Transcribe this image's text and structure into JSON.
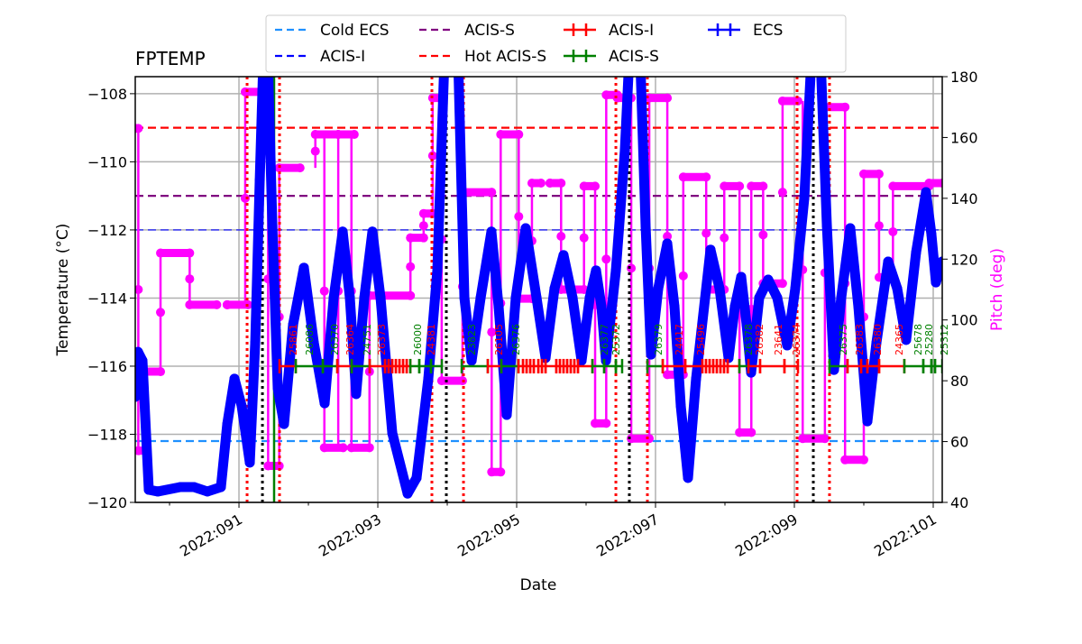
{
  "chart_data": {
    "type": "line",
    "title": "FPTEMP",
    "xlabel": "Date",
    "ylabel": "Temperature ($^\\circ$C)",
    "ylabel_display": "Temperature (°C)",
    "y2label": "Pitch (deg)",
    "xlim": [
      89.506,
      101.13
    ],
    "ylim": [
      -120,
      -107.5
    ],
    "y2lim": [
      40,
      180
    ],
    "grid": true,
    "legend_placement": "top-center",
    "x_ticks": [
      {
        "day": 91,
        "label": "2022:091"
      },
      {
        "day": 93,
        "label": "2022:093"
      },
      {
        "day": 95,
        "label": "2022:095"
      },
      {
        "day": 97,
        "label": "2022:097"
      },
      {
        "day": 99,
        "label": "2022:099"
      },
      {
        "day": 101,
        "label": "2022:101"
      }
    ],
    "y_ticks": [
      -120,
      -118,
      -116,
      -114,
      -112,
      -110,
      -108
    ],
    "y2_ticks": [
      40,
      60,
      80,
      100,
      120,
      140,
      160,
      180
    ],
    "colors": {
      "temperature": "#0000ff",
      "pitch": "#ff00ff",
      "acis_i": "#ff0000",
      "acis_s": "#008000",
      "ecs": "#0000ff",
      "grid": "#b0b0b0"
    },
    "limit_lines": [
      {
        "name": "Cold ECS",
        "value": -118.2,
        "color": "#1e90ff"
      },
      {
        "name": "ACIS-I",
        "value": -112.0,
        "color": "#0000ff"
      },
      {
        "name": "ACIS-S",
        "value": -111.0,
        "color": "#800080"
      },
      {
        "name": "Hot ACIS-S",
        "value": -109.0,
        "color": "#ff0000"
      }
    ],
    "legend": [
      {
        "label": "Cold ECS",
        "style": "dashed",
        "color": "#1e90ff"
      },
      {
        "label": "ACIS-I",
        "style": "dashed",
        "color": "#0000ff"
      },
      {
        "label": "ACIS-S",
        "style": "dashed",
        "color": "#800080"
      },
      {
        "label": "Hot ACIS-S",
        "style": "dashed",
        "color": "#ff0000"
      },
      {
        "label": "ACIS-I",
        "style": "ticked",
        "color": "#ff0000"
      },
      {
        "label": "ACIS-S",
        "style": "ticked",
        "color": "#008000"
      },
      {
        "label": "ECS",
        "style": "ticked",
        "color": "#0000ff"
      }
    ],
    "temperature": [
      [
        89.506,
        -116.9
      ],
      [
        89.545,
        -115.58
      ],
      [
        89.61,
        -115.84
      ],
      [
        89.701,
        -119.63
      ],
      [
        89.831,
        -119.68
      ],
      [
        90.156,
        -119.55
      ],
      [
        90.351,
        -119.55
      ],
      [
        90.545,
        -119.68
      ],
      [
        90.74,
        -119.55
      ],
      [
        90.831,
        -117.7
      ],
      [
        90.935,
        -116.37
      ],
      [
        91.039,
        -117.17
      ],
      [
        91.156,
        -118.83
      ],
      [
        91.234,
        -115.31
      ],
      [
        91.299,
        -110.54
      ],
      [
        91.351,
        -107.0
      ],
      [
        91.416,
        -107.0
      ],
      [
        91.481,
        -111.87
      ],
      [
        91.558,
        -116.64
      ],
      [
        91.649,
        -117.7
      ],
      [
        91.779,
        -114.78
      ],
      [
        91.935,
        -113.11
      ],
      [
        92.078,
        -115.31
      ],
      [
        92.234,
        -117.09
      ],
      [
        92.364,
        -113.99
      ],
      [
        92.494,
        -112.05
      ],
      [
        92.597,
        -113.99
      ],
      [
        92.688,
        -116.82
      ],
      [
        92.805,
        -113.99
      ],
      [
        92.922,
        -112.05
      ],
      [
        93.039,
        -113.99
      ],
      [
        93.208,
        -117.96
      ],
      [
        93.429,
        -119.74
      ],
      [
        93.558,
        -119.28
      ],
      [
        93.727,
        -116.37
      ],
      [
        93.857,
        -113.19
      ],
      [
        93.961,
        -106.9
      ],
      [
        94.156,
        -106.9
      ],
      [
        94.247,
        -113.99
      ],
      [
        94.351,
        -115.84
      ],
      [
        94.481,
        -113.99
      ],
      [
        94.636,
        -112.05
      ],
      [
        94.74,
        -114.25
      ],
      [
        94.857,
        -117.43
      ],
      [
        94.987,
        -113.99
      ],
      [
        95.13,
        -111.95
      ],
      [
        95.286,
        -113.99
      ],
      [
        95.416,
        -115.76
      ],
      [
        95.545,
        -113.72
      ],
      [
        95.675,
        -112.74
      ],
      [
        95.805,
        -113.99
      ],
      [
        95.935,
        -115.84
      ],
      [
        96.052,
        -113.99
      ],
      [
        96.143,
        -113.19
      ],
      [
        96.221,
        -114.25
      ],
      [
        96.286,
        -115.84
      ],
      [
        96.429,
        -113.19
      ],
      [
        96.558,
        -109.67
      ],
      [
        96.623,
        -106.9
      ],
      [
        96.779,
        -106.9
      ],
      [
        96.857,
        -111.87
      ],
      [
        96.935,
        -115.66
      ],
      [
        97.039,
        -113.72
      ],
      [
        97.169,
        -112.4
      ],
      [
        97.273,
        -114.25
      ],
      [
        97.364,
        -117.17
      ],
      [
        97.468,
        -119.28
      ],
      [
        97.584,
        -116.37
      ],
      [
        97.792,
        -112.58
      ],
      [
        97.922,
        -113.72
      ],
      [
        98.052,
        -115.76
      ],
      [
        98.143,
        -114.25
      ],
      [
        98.234,
        -113.38
      ],
      [
        98.312,
        -114.78
      ],
      [
        98.377,
        -116.19
      ],
      [
        98.494,
        -113.99
      ],
      [
        98.623,
        -113.46
      ],
      [
        98.753,
        -113.99
      ],
      [
        98.896,
        -115.39
      ],
      [
        99.013,
        -113.72
      ],
      [
        99.143,
        -111.07
      ],
      [
        99.247,
        -106.9
      ],
      [
        99.377,
        -106.9
      ],
      [
        99.468,
        -111.87
      ],
      [
        99.571,
        -116.11
      ],
      [
        99.675,
        -113.99
      ],
      [
        99.805,
        -111.95
      ],
      [
        99.922,
        -114.25
      ],
      [
        100.052,
        -117.62
      ],
      [
        100.182,
        -115.31
      ],
      [
        100.351,
        -112.93
      ],
      [
        100.481,
        -113.72
      ],
      [
        100.61,
        -115.23
      ],
      [
        100.753,
        -112.66
      ],
      [
        100.896,
        -110.89
      ],
      [
        100.974,
        -112.13
      ],
      [
        101.039,
        -113.54
      ],
      [
        101.13,
        -112.93
      ]
    ],
    "pitch_steps": [
      [
        89.51,
        89.55,
        163
      ],
      [
        89.55,
        89.64,
        57
      ],
      [
        89.64,
        89.87,
        83
      ],
      [
        89.87,
        90.29,
        122
      ],
      [
        90.29,
        90.68,
        105
      ],
      [
        90.83,
        91.13,
        105
      ],
      [
        91.09,
        91.33,
        175
      ],
      [
        91.42,
        91.58,
        52
      ],
      [
        91.58,
        91.88,
        150
      ],
      [
        92.1,
        92.43,
        161
      ],
      [
        92.23,
        92.5,
        58
      ],
      [
        92.43,
        92.66,
        161
      ],
      [
        92.62,
        92.88,
        58
      ],
      [
        92.88,
        93.47,
        108
      ],
      [
        93.47,
        93.66,
        127
      ],
      [
        93.66,
        93.79,
        135
      ],
      [
        93.79,
        93.92,
        173
      ],
      [
        93.92,
        94.22,
        80
      ],
      [
        94.22,
        94.64,
        142
      ],
      [
        94.64,
        94.77,
        50
      ],
      [
        94.77,
        95.03,
        161
      ],
      [
        95.03,
        95.22,
        107
      ],
      [
        95.22,
        95.35,
        145
      ],
      [
        95.48,
        95.64,
        145
      ],
      [
        95.64,
        95.97,
        110
      ],
      [
        95.97,
        96.13,
        144
      ],
      [
        96.13,
        96.29,
        66
      ],
      [
        96.29,
        96.45,
        174
      ],
      [
        96.45,
        96.65,
        173
      ],
      [
        96.65,
        96.91,
        61
      ],
      [
        96.91,
        97.17,
        173
      ],
      [
        97.17,
        97.4,
        82
      ],
      [
        97.4,
        97.73,
        147
      ],
      [
        97.73,
        97.99,
        110
      ],
      [
        97.99,
        98.21,
        144
      ],
      [
        98.21,
        98.38,
        63
      ],
      [
        98.38,
        98.55,
        144
      ],
      [
        98.55,
        98.83,
        112
      ],
      [
        98.83,
        99.05,
        172
      ],
      [
        99.12,
        99.44,
        61
      ],
      [
        99.44,
        99.73,
        170
      ],
      [
        99.73,
        100.0,
        54
      ],
      [
        100.0,
        100.22,
        148
      ],
      [
        100.22,
        100.42,
        114
      ],
      [
        100.42,
        100.94,
        144
      ],
      [
        100.94,
        101.13,
        145
      ]
    ],
    "observations": [
      [
        91.584,
        91.818,
        "ACIS-I"
      ],
      [
        91.818,
        92.208,
        "ACIS-S"
      ],
      [
        92.208,
        92.416,
        "ACIS-S"
      ],
      [
        92.416,
        92.623,
        "ACIS-I"
      ],
      [
        92.623,
        92.883,
        "ACIS-S"
      ],
      [
        92.883,
        93.104,
        "ACIS-I"
      ],
      [
        93.104,
        93.156,
        "ACIS-I"
      ],
      [
        93.156,
        93.208,
        "ACIS-I"
      ],
      [
        93.208,
        93.26,
        "ACIS-I"
      ],
      [
        93.26,
        93.312,
        "ACIS-I"
      ],
      [
        93.312,
        93.364,
        "ACIS-I"
      ],
      [
        93.364,
        93.416,
        "ACIS-I"
      ],
      [
        93.416,
        93.468,
        "ACIS-I"
      ],
      [
        93.468,
        93.597,
        "ACIS-S"
      ],
      [
        93.597,
        93.766,
        "ACIS-S"
      ],
      [
        93.766,
        93.922,
        "ACIS-S"
      ],
      [
        94.208,
        94.584,
        "ACIS-S"
      ],
      [
        94.584,
        94.779,
        "ACIS-I"
      ],
      [
        94.779,
        95.026,
        "ACIS-S"
      ],
      [
        95.026,
        95.091,
        "ACIS-I"
      ],
      [
        95.091,
        95.143,
        "ACIS-I"
      ],
      [
        95.143,
        95.195,
        "ACIS-I"
      ],
      [
        95.195,
        95.247,
        "ACIS-I"
      ],
      [
        95.247,
        95.312,
        "ACIS-I"
      ],
      [
        95.312,
        95.364,
        "ACIS-I"
      ],
      [
        95.364,
        95.416,
        "ACIS-I"
      ],
      [
        95.416,
        95.571,
        "ACIS-I"
      ],
      [
        95.571,
        95.623,
        "ACIS-I"
      ],
      [
        95.623,
        95.675,
        "ACIS-I"
      ],
      [
        95.675,
        95.727,
        "ACIS-I"
      ],
      [
        95.727,
        95.779,
        "ACIS-I"
      ],
      [
        95.779,
        95.831,
        "ACIS-I"
      ],
      [
        95.831,
        95.883,
        "ACIS-I"
      ],
      [
        95.883,
        96.091,
        "ACIS-I"
      ],
      [
        96.091,
        96.26,
        "ACIS-S"
      ],
      [
        96.26,
        96.429,
        "ACIS-S"
      ],
      [
        96.429,
        96.519,
        "ACIS-S"
      ],
      [
        96.883,
        97.104,
        "ACIS-S"
      ],
      [
        97.104,
        97.429,
        "ACIS-I"
      ],
      [
        97.429,
        97.675,
        "ACIS-I"
      ],
      [
        97.675,
        97.727,
        "ACIS-I"
      ],
      [
        97.727,
        97.779,
        "ACIS-I"
      ],
      [
        97.779,
        97.831,
        "ACIS-I"
      ],
      [
        97.831,
        97.883,
        "ACIS-I"
      ],
      [
        97.883,
        97.935,
        "ACIS-I"
      ],
      [
        97.935,
        97.987,
        "ACIS-I"
      ],
      [
        97.987,
        98.039,
        "ACIS-I"
      ],
      [
        98.039,
        98.208,
        "ACIS-I"
      ],
      [
        98.208,
        98.338,
        "ACIS-S"
      ],
      [
        98.338,
        98.506,
        "ACIS-I"
      ],
      [
        98.506,
        98.857,
        "ACIS-I"
      ],
      [
        98.857,
        99.052,
        "ACIS-I"
      ],
      [
        99.506,
        99.766,
        "ACIS-S"
      ],
      [
        99.766,
        99.961,
        "ACIS-I"
      ],
      [
        99.961,
        100.052,
        "ACIS-I"
      ],
      [
        100.052,
        100.221,
        "ACIS-I"
      ],
      [
        100.221,
        100.584,
        "ACIS-I"
      ],
      [
        100.584,
        100.857,
        "ACIS-S"
      ],
      [
        100.857,
        100.974,
        "ACIS-S"
      ],
      [
        100.974,
        101.026,
        "ACIS-S"
      ],
      [
        101.026,
        101.13,
        "ACIS-S"
      ]
    ],
    "obsid_labels": [
      {
        "day": 91.779,
        "text": "25861",
        "inst": "ACIS-I"
      },
      {
        "day": 92.013,
        "text": "26086",
        "inst": "ACIS-S"
      },
      {
        "day": 92.377,
        "text": "26370",
        "inst": "ACIS-S"
      },
      {
        "day": 92.597,
        "text": "26364",
        "inst": "ACIS-I"
      },
      {
        "day": 92.844,
        "text": "24751",
        "inst": "ACIS-S"
      },
      {
        "day": 93.052,
        "text": "26373",
        "inst": "ACIS-I"
      },
      {
        "day": 93.571,
        "text": "26000",
        "inst": "ACIS-S"
      },
      {
        "day": 93.766,
        "text": "24381",
        "inst": "ACIS-I"
      },
      {
        "day": 94.351,
        "text": "23823",
        "inst": "ACIS-S"
      },
      {
        "day": 94.74,
        "text": "26105",
        "inst": "ACIS-I"
      },
      {
        "day": 94.987,
        "text": "26376",
        "inst": "ACIS-S"
      },
      {
        "day": 96.26,
        "text": "26377",
        "inst": "ACIS-S"
      },
      {
        "day": 96.429,
        "text": "25372",
        "inst": "ACIS-S"
      },
      {
        "day": 97.039,
        "text": "26379",
        "inst": "ACIS-S"
      },
      {
        "day": 97.338,
        "text": "24417",
        "inst": "ACIS-I"
      },
      {
        "day": 97.649,
        "text": "25496",
        "inst": "ACIS-I"
      },
      {
        "day": 98.338,
        "text": "26378",
        "inst": "ACIS-S"
      },
      {
        "day": 98.494,
        "text": "26382",
        "inst": "ACIS-I"
      },
      {
        "day": 98.766,
        "text": "23641",
        "inst": "ACIS-I"
      },
      {
        "day": 99.026,
        "text": "26374",
        "inst": "ACIS-I"
      },
      {
        "day": 99.701,
        "text": "26375",
        "inst": "ACIS-S"
      },
      {
        "day": 99.935,
        "text": "26383",
        "inst": "ACIS-I"
      },
      {
        "day": 100.195,
        "text": "26380",
        "inst": "ACIS-I"
      },
      {
        "day": 100.506,
        "text": "24365",
        "inst": "ACIS-I"
      },
      {
        "day": 100.779,
        "text": "25678",
        "inst": "ACIS-S"
      },
      {
        "day": 100.935,
        "text": "25280",
        "inst": "ACIS-S"
      },
      {
        "day": 101.156,
        "text": "25312",
        "inst": "ACIS-S"
      }
    ],
    "vertical_lines": [
      {
        "day": 91.117,
        "color": "#ff0000",
        "style": "dotted"
      },
      {
        "day": 91.338,
        "color": "#000000",
        "style": "dotted"
      },
      {
        "day": 91.506,
        "color": "#008000",
        "style": "solid"
      },
      {
        "day": 91.584,
        "color": "#ff0000",
        "style": "dotted"
      },
      {
        "day": 93.779,
        "color": "#ff0000",
        "style": "dotted"
      },
      {
        "day": 93.987,
        "color": "#000000",
        "style": "dotted"
      },
      {
        "day": 94.234,
        "color": "#ff0000",
        "style": "dotted"
      },
      {
        "day": 96.429,
        "color": "#ff0000",
        "style": "dotted"
      },
      {
        "day": 96.623,
        "color": "#000000",
        "style": "dotted"
      },
      {
        "day": 96.883,
        "color": "#ff0000",
        "style": "dotted"
      },
      {
        "day": 99.039,
        "color": "#ff0000",
        "style": "dotted"
      },
      {
        "day": 99.273,
        "color": "#000000",
        "style": "dotted"
      },
      {
        "day": 99.506,
        "color": "#ff0000",
        "style": "dotted"
      }
    ]
  }
}
